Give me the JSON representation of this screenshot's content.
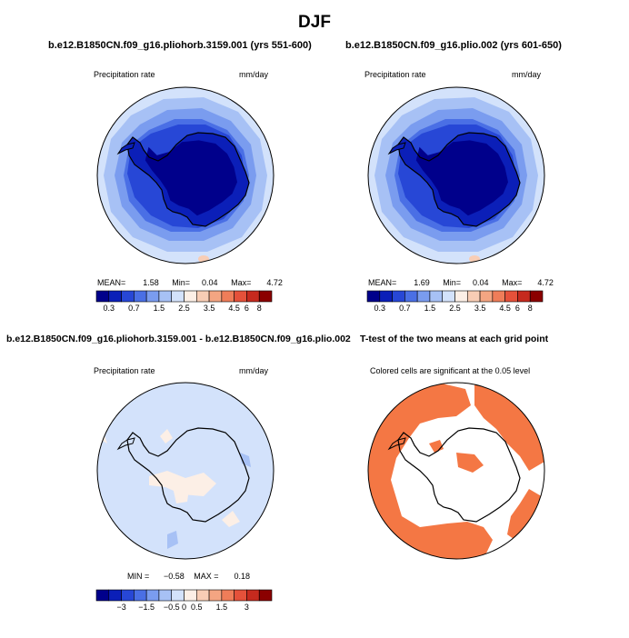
{
  "main_title": "DJF",
  "chart_data": [
    {
      "type": "heatmap",
      "projection": "south-polar-stereographic",
      "title": "b.e12.B1850CN.f09_g16.pliohorb.3159.001 (yrs 551-600)",
      "left_label": "Precipitation rate",
      "right_label": "mm/day",
      "stats": {
        "mean_label": "MEAN=",
        "mean": "1.58",
        "min_label": "Min=",
        "min": "0.04",
        "max_label": "Max=",
        "max": "4.72"
      }
    },
    {
      "type": "heatmap",
      "projection": "south-polar-stereographic",
      "title": "b.e12.B1850CN.f09_g16.plio.002 (yrs 601-650)",
      "left_label": "Precipitation rate",
      "right_label": "mm/day",
      "stats": {
        "mean_label": "MEAN=",
        "mean": "1.69",
        "min_label": "Min=",
        "min": "0.04",
        "max_label": "Max=",
        "max": "4.72"
      }
    },
    {
      "type": "heatmap",
      "projection": "south-polar-stereographic",
      "title": "b.e12.B1850CN.f09_g16.pliohorb.3159.001 - b.e12.B1850CN.f09_g16.plio.002",
      "left_label": "Precipitation rate",
      "right_label": "mm/day",
      "stats": {
        "min_label": "MIN =",
        "min": "−0.58",
        "max_label": "MAX =",
        "max": "0.18"
      }
    },
    {
      "type": "heatmap",
      "projection": "south-polar-stereographic",
      "title": "T-test of the two means at each grid point",
      "subtitle": "Colored cells are significant at the 0.05 level",
      "significant_color": "#f47744"
    }
  ],
  "colorbars": {
    "precip": {
      "colors": [
        "#00008b",
        "#0b1fb8",
        "#2747d6",
        "#4a6fe5",
        "#7a9cef",
        "#a7c1f5",
        "#d3e2fb",
        "#fcefe6",
        "#f8cdb5",
        "#f4a582",
        "#ef7d59",
        "#e5513a",
        "#c62a1e",
        "#8b0000"
      ],
      "tick_labels": [
        "0.3",
        "0.7",
        "1.5",
        "2.5",
        "3.5",
        "4.5",
        "6",
        "8"
      ]
    },
    "diff": {
      "colors": [
        "#00008b",
        "#0b1fb8",
        "#2747d6",
        "#4a6fe5",
        "#7a9cef",
        "#a7c1f5",
        "#d3e2fb",
        "#fcefe6",
        "#f8cdb5",
        "#f4a582",
        "#ef7d59",
        "#e5513a",
        "#c62a1e",
        "#8b0000"
      ],
      "tick_labels": [
        "−3",
        "−1.5",
        "−0.5",
        "0",
        "0.5",
        "1.5",
        "3"
      ]
    }
  }
}
